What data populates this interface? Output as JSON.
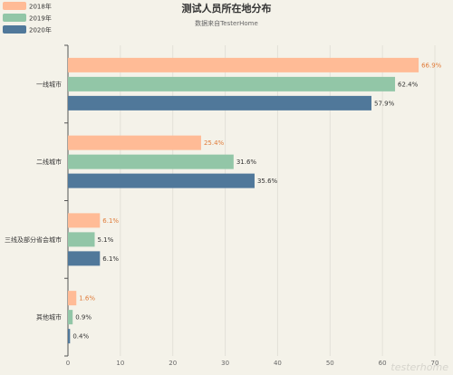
{
  "chart_data": {
    "type": "bar",
    "orientation": "horizontal",
    "title": "测试人员所在地分布",
    "subtitle": "数据来自TesterHome",
    "categories": [
      "一线城市",
      "二线城市",
      "三线及部分省会城市",
      "其他城市"
    ],
    "series": [
      {
        "name": "2018年",
        "values": [
          66.9,
          25.4,
          6.1,
          1.6
        ],
        "labels": [
          "66.9%",
          "25.4%",
          "6.1%",
          "1.6%"
        ],
        "color": "#ffbb96",
        "label_color": "#e07c3a"
      },
      {
        "name": "2019年",
        "values": [
          62.4,
          31.6,
          5.1,
          0.9
        ],
        "labels": [
          "62.4%",
          "31.6%",
          "5.1%",
          "0.9%"
        ],
        "color": "#92c6a7",
        "label_color": "#333333"
      },
      {
        "name": "2020年",
        "values": [
          57.9,
          35.6,
          6.1,
          0.4
        ],
        "labels": [
          "57.9%",
          "35.6%",
          "6.1%",
          "0.4%"
        ],
        "color": "#50789a",
        "label_color": "#333333"
      }
    ],
    "xlim": [
      0,
      70
    ],
    "xticks": [
      "0",
      "10",
      "20",
      "30",
      "40",
      "50",
      "60",
      "70"
    ],
    "grid": true,
    "legend_position": "top-left",
    "watermark": "testerhome"
  }
}
